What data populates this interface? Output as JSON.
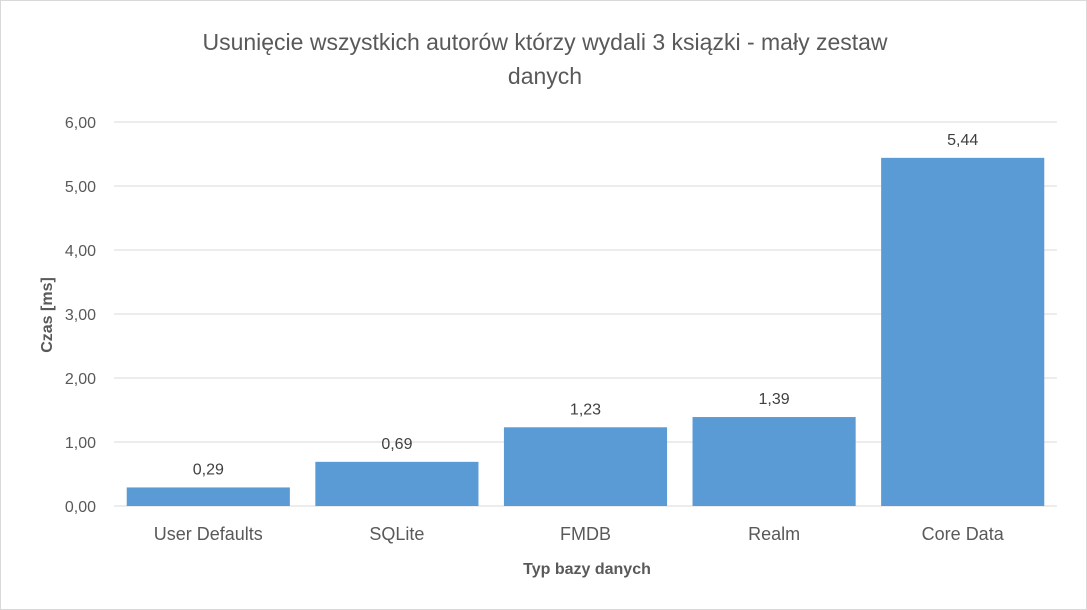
{
  "chart_data": {
    "type": "bar",
    "title_lines": [
      "Usunięcie wszystkich autorów którzy wydali 3 ksiązki - mały zestaw",
      "danych"
    ],
    "xlabel": "Typ bazy danych",
    "ylabel": "Czas [ms]",
    "categories": [
      "User Defaults",
      "SQLite",
      "FMDB",
      "Realm",
      "Core Data"
    ],
    "values": [
      0.29,
      0.69,
      1.23,
      1.39,
      5.44
    ],
    "value_labels": [
      "0,29",
      "0,69",
      "1,23",
      "1,39",
      "5,44"
    ],
    "ylim": [
      0,
      6
    ],
    "yticks": [
      0,
      1,
      2,
      3,
      4,
      5,
      6
    ],
    "ytick_labels": [
      "0,00",
      "1,00",
      "2,00",
      "3,00",
      "4,00",
      "5,00",
      "6,00"
    ],
    "grid": true,
    "legend": "none",
    "bar_color": "#5b9bd5",
    "grid_color": "#d9d9d9"
  }
}
